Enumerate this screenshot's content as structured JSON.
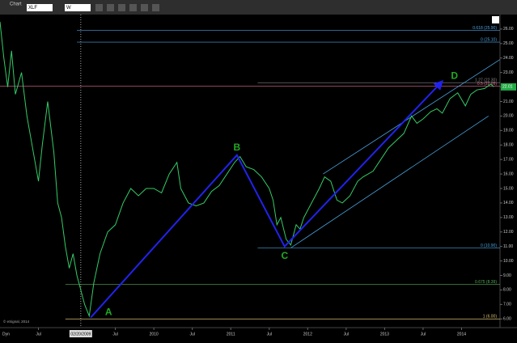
{
  "window": {
    "title": "Chart",
    "symbol": "XLF",
    "interval": "W"
  },
  "chart_data": {
    "type": "line",
    "color": "#33cc66",
    "x": [
      2008.0,
      2008.05,
      2008.1,
      2008.15,
      2008.2,
      2008.28,
      2008.35,
      2008.45,
      2008.5,
      2008.55,
      2008.62,
      2008.7,
      2008.75,
      2008.8,
      2008.85,
      2008.9,
      2008.95,
      2009.0,
      2009.05,
      2009.1,
      2009.16,
      2009.22,
      2009.3,
      2009.4,
      2009.5,
      2009.6,
      2009.7,
      2009.8,
      2009.9,
      2010.0,
      2010.1,
      2010.2,
      2010.3,
      2010.35,
      2010.45,
      2010.55,
      2010.65,
      2010.75,
      2010.85,
      2010.95,
      2011.05,
      2011.12,
      2011.2,
      2011.3,
      2011.4,
      2011.5,
      2011.55,
      2011.6,
      2011.65,
      2011.72,
      2011.78,
      2011.85,
      2011.9,
      2011.95,
      2012.05,
      2012.15,
      2012.22,
      2012.3,
      2012.38,
      2012.45,
      2012.55,
      2012.65,
      2012.72,
      2012.85,
      2012.95,
      2013.05,
      2013.15,
      2013.25,
      2013.35,
      2013.42,
      2013.5,
      2013.6,
      2013.68,
      2013.75,
      2013.85,
      2013.95,
      2014.05,
      2014.12,
      2014.2,
      2014.3,
      2014.38,
      2014.42
    ],
    "values": [
      26.5,
      24,
      22,
      24.5,
      21.5,
      23,
      20,
      17,
      15.5,
      18,
      21,
      17.5,
      14,
      13,
      11,
      9.5,
      10.5,
      9,
      8,
      7,
      6.2,
      8.5,
      10.5,
      12,
      12.5,
      14,
      15,
      14.5,
      15,
      15,
      14.7,
      16,
      16.8,
      15,
      14,
      13.8,
      14,
      14.8,
      15.2,
      16,
      16.8,
      17.2,
      16.5,
      16.3,
      15.8,
      15,
      14.2,
      12.5,
      13,
      11.5,
      11.1,
      12.5,
      12.2,
      13,
      14,
      15,
      15.8,
      15.5,
      14.2,
      14,
      14.5,
      15.5,
      15.8,
      16.2,
      17,
      17.8,
      18.3,
      18.8,
      20,
      19.5,
      19.8,
      20.3,
      20.5,
      20.2,
      21.2,
      21.6,
      20.7,
      21.5,
      21.8,
      21.9,
      22.2,
      22.01
    ],
    "xlim": [
      2008.0,
      2014.5
    ],
    "ylim": [
      5.4,
      27.0
    ],
    "xticks": [
      {
        "value": 2008.5,
        "label": "Jul"
      },
      {
        "value": 2009.5,
        "label": "Jul"
      },
      2010,
      {
        "value": 2010.5,
        "label": "Jul"
      },
      2011,
      {
        "value": 2011.5,
        "label": "Jul"
      },
      2012,
      {
        "value": 2012.5,
        "label": "Jul"
      },
      2013,
      {
        "value": 2013.5,
        "label": "Jul"
      },
      2014
    ],
    "yticks": [
      {
        "value": 6,
        "label": "6.00"
      },
      {
        "value": 7,
        "label": "7.00"
      },
      {
        "value": 8,
        "label": "8.00"
      },
      {
        "value": 9,
        "label": "9.00"
      },
      {
        "value": 10,
        "label": "10.00"
      },
      {
        "value": 11,
        "label": "11.00"
      },
      {
        "value": 12,
        "label": "12.00"
      },
      {
        "value": 13,
        "label": "13.00"
      },
      {
        "value": 14,
        "label": "14.00"
      },
      {
        "value": 15,
        "label": "15.00"
      },
      {
        "value": 16,
        "label": "16.00"
      },
      {
        "value": 17,
        "label": "17.00"
      },
      {
        "value": 18,
        "label": "18.00"
      },
      {
        "value": 19,
        "label": "19.00"
      },
      {
        "value": 20,
        "label": "20.00"
      },
      {
        "value": 21,
        "label": "21.00"
      },
      {
        "value": 22,
        "label": "22.00"
      },
      {
        "value": 23,
        "label": "23.00"
      },
      {
        "value": 24,
        "label": "24.00"
      },
      {
        "value": 25,
        "label": "25.00"
      },
      {
        "value": 26,
        "label": "26.00"
      }
    ],
    "pattern": [
      {
        "label": "A",
        "x": 2009.18,
        "y": 6.1
      },
      {
        "label": "B",
        "x": 2011.08,
        "y": 17.3
      },
      {
        "label": "C",
        "x": 2011.7,
        "y": 11.0
      },
      {
        "label": "D",
        "x": 2013.75,
        "y": 22.4
      }
    ],
    "levels": [
      {
        "value": 25.9,
        "label": "0.618 (25.90)",
        "color": "#4aa3df",
        "from": 2009.0
      },
      {
        "value": 25.1,
        "label": "0 (25.10)",
        "color": "#4aa3df",
        "from": 2009.0
      },
      {
        "value": 22.3,
        "label": "1.27 (22.30)",
        "color": "#888888",
        "from": 2011.35
      },
      {
        "value": 22.05,
        "label": "0.5 (22.05)",
        "color": "#e07090",
        "from": 2008.0
      },
      {
        "value": 10.9,
        "label": "0 (10.90)",
        "color": "#4aa3df",
        "from": 2011.35
      },
      {
        "value": 8.39,
        "label": "0.675 (8.39)",
        "color": "#55aa55",
        "from": 2008.85
      },
      {
        "value": 6.0,
        "label": "1 (6.00)",
        "color": "#d8c070",
        "from": 2008.85
      }
    ],
    "trendlines": [
      {
        "x1": 2011.78,
        "y1": 10.9,
        "x2": 2014.35,
        "y2": 20.0
      },
      {
        "x1": 2012.2,
        "y1": 16.0,
        "x2": 2014.5,
        "y2": 23.9
      }
    ],
    "cursor": {
      "x": 2009.05,
      "label": "02/20/2009"
    },
    "last": {
      "value": 22.01,
      "label": "22.01"
    },
    "watermark": "© eSignal, 2014",
    "corner": "Dyn"
  }
}
